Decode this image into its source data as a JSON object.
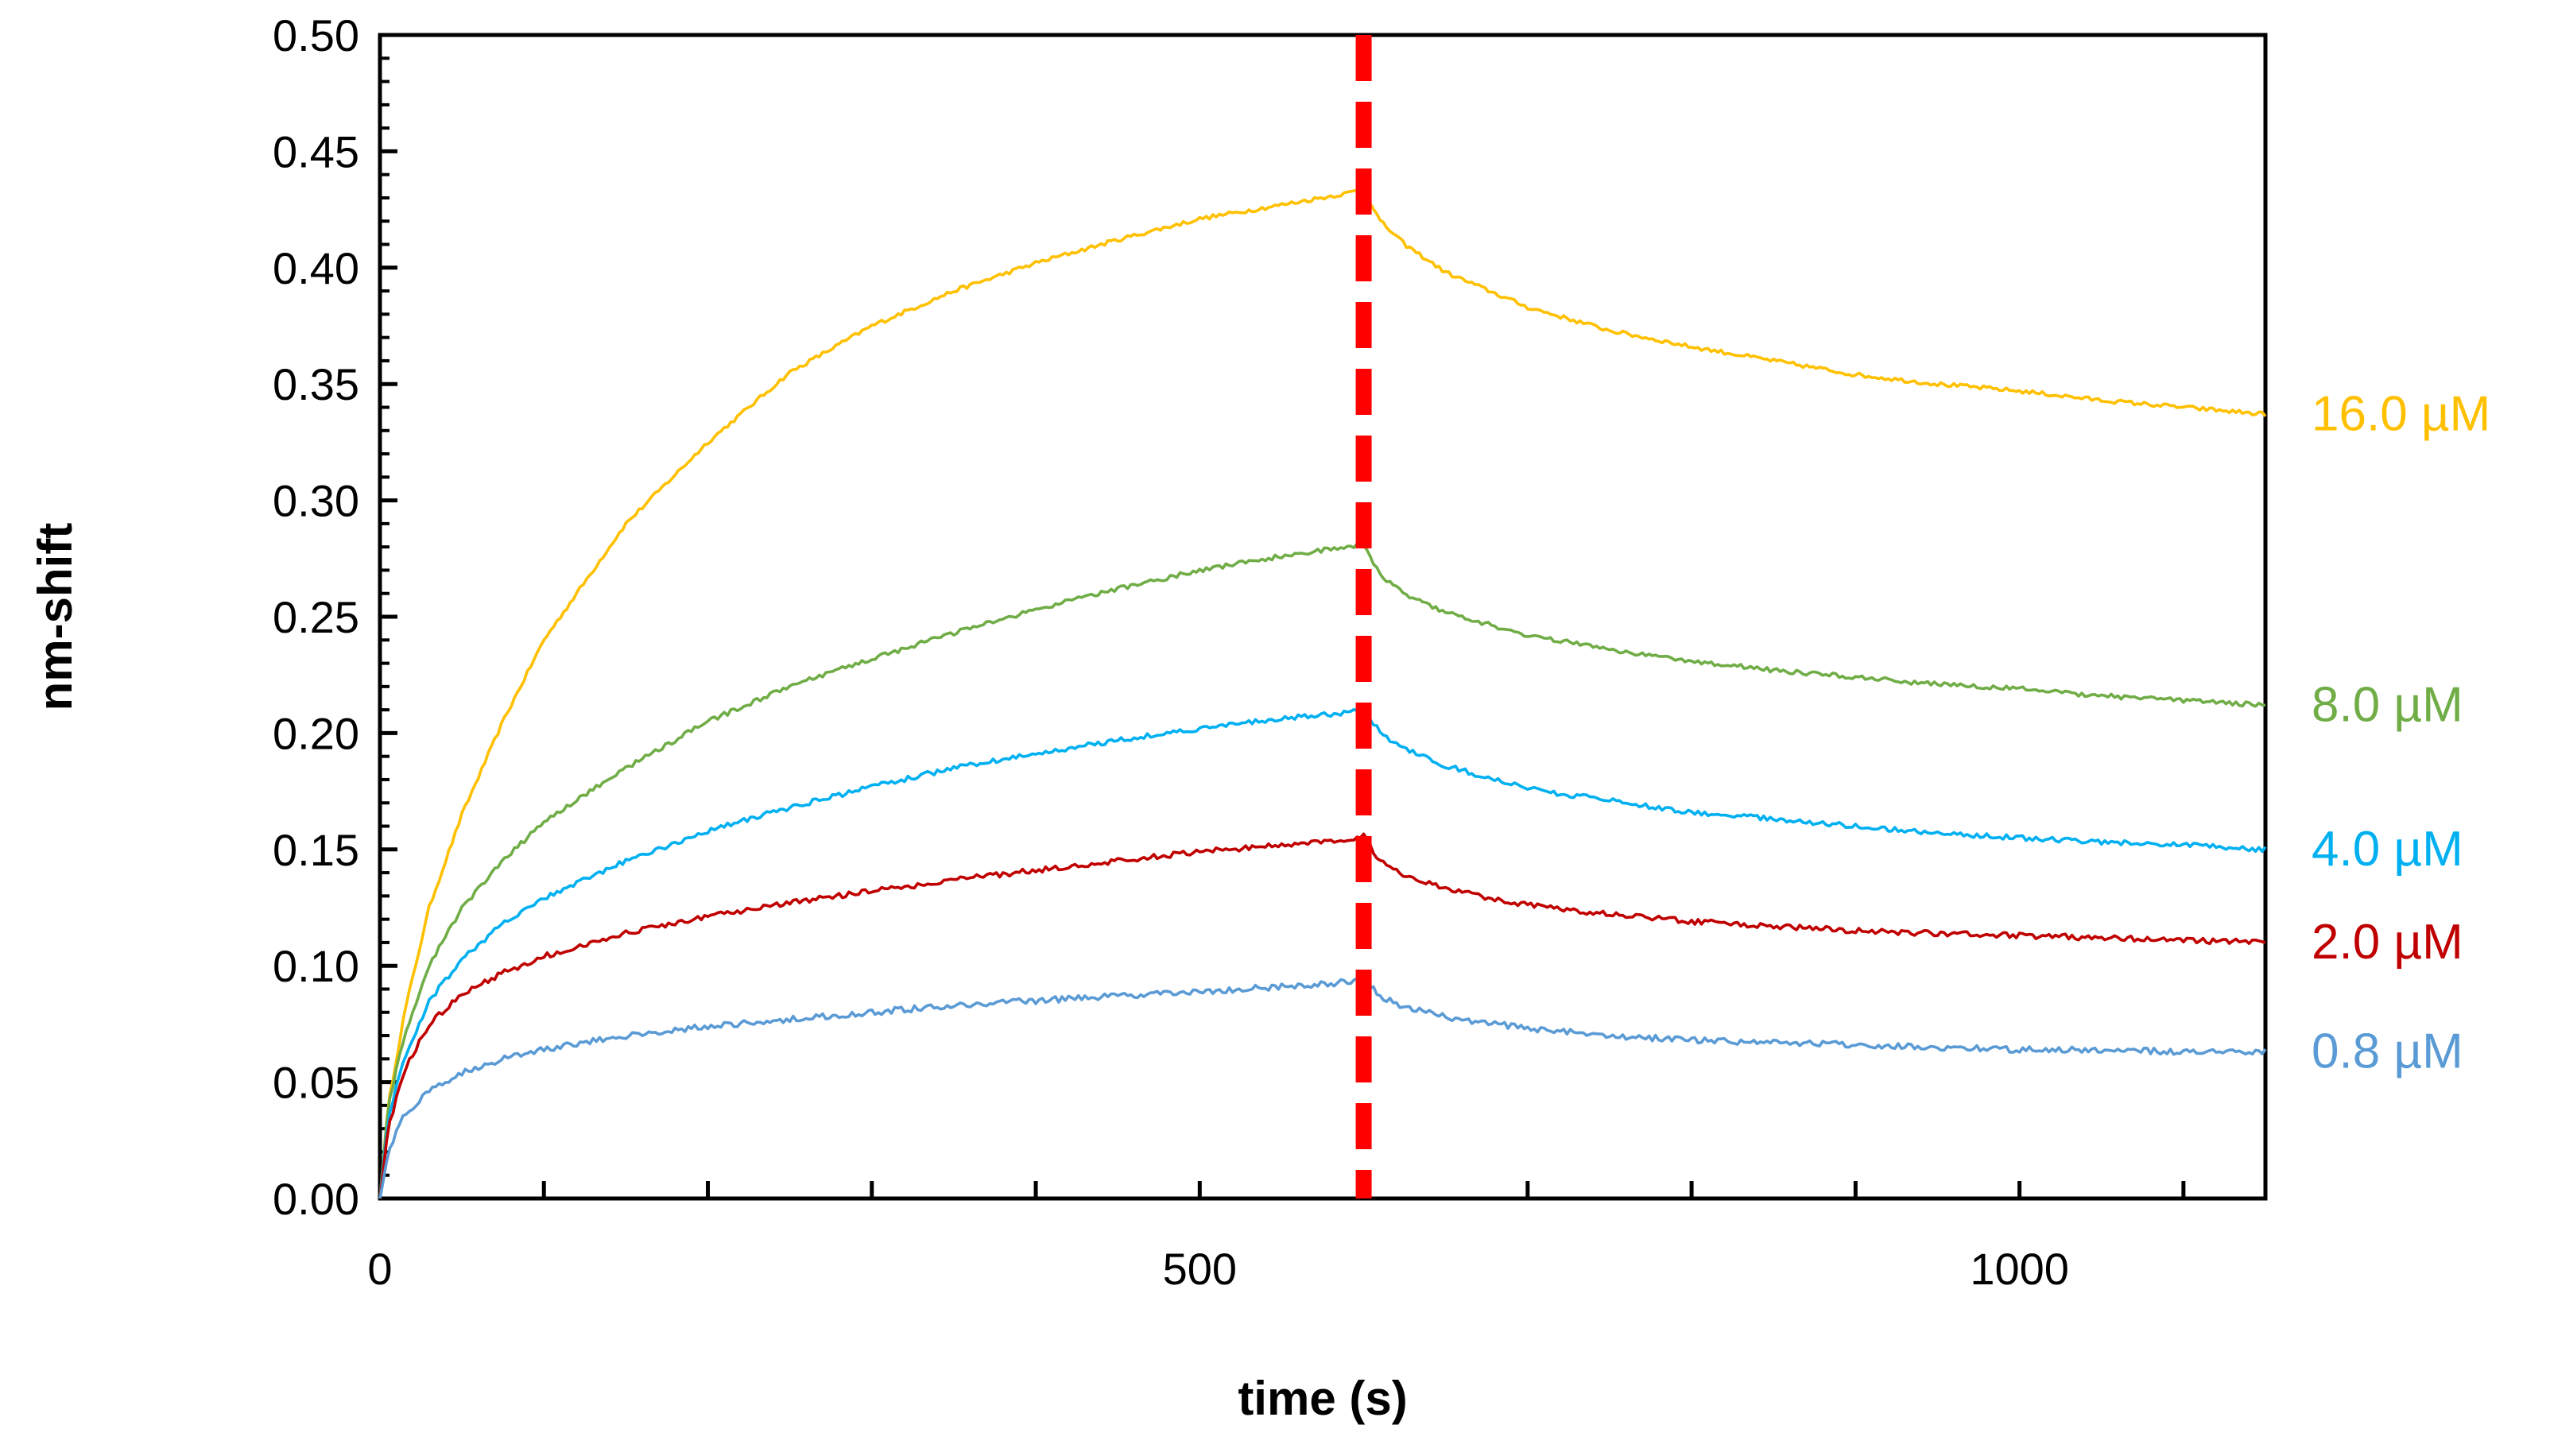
{
  "chart_data": {
    "type": "line",
    "title": "",
    "xlabel": "time (s)",
    "ylabel": "nm-shift",
    "xlim": [
      0,
      1150
    ],
    "ylim": [
      0,
      0.5
    ],
    "x_ticks": [
      0,
      500,
      1000
    ],
    "x_tick_labels": [
      "0",
      "500",
      "1000"
    ],
    "y_ticks": [
      0,
      0.05,
      0.1,
      0.15,
      0.2,
      0.25,
      0.3,
      0.35,
      0.4,
      0.45,
      0.5
    ],
    "y_tick_labels": [
      "0.00",
      "0.05",
      "0.10",
      "0.15",
      "0.20",
      "0.25",
      "0.30",
      "0.35",
      "0.40",
      "0.45",
      "0.50"
    ],
    "grid": false,
    "legend": "labels at right end of each series",
    "annotations": [
      {
        "type": "vertical-dashed-line",
        "x": 600,
        "color": "#ff0000"
      }
    ],
    "series": [
      {
        "name": "16.0 µM",
        "color": "#ffc000",
        "x": [
          0,
          5,
          15,
          30,
          50,
          75,
          100,
          150,
          200,
          250,
          300,
          350,
          400,
          450,
          500,
          550,
          590,
          600,
          610,
          625,
          650,
          700,
          750,
          800,
          850,
          900,
          950,
          1000,
          1050,
          1100,
          1150
        ],
        "y": [
          0.0,
          0.04,
          0.08,
          0.125,
          0.165,
          0.205,
          0.24,
          0.29,
          0.325,
          0.355,
          0.375,
          0.39,
          0.402,
          0.412,
          0.421,
          0.427,
          0.432,
          0.434,
          0.42,
          0.41,
          0.398,
          0.383,
          0.373,
          0.366,
          0.36,
          0.354,
          0.35,
          0.347,
          0.343,
          0.34,
          0.337
        ]
      },
      {
        "name": "8.0 µM",
        "color": "#70ad47",
        "x": [
          0,
          5,
          15,
          30,
          50,
          75,
          100,
          150,
          200,
          250,
          300,
          350,
          400,
          450,
          500,
          550,
          590,
          600,
          610,
          625,
          650,
          700,
          750,
          800,
          850,
          900,
          950,
          1000,
          1050,
          1100,
          1150
        ],
        "y": [
          0.0,
          0.04,
          0.07,
          0.1,
          0.125,
          0.145,
          0.162,
          0.185,
          0.205,
          0.22,
          0.232,
          0.243,
          0.253,
          0.262,
          0.27,
          0.276,
          0.28,
          0.281,
          0.268,
          0.26,
          0.252,
          0.242,
          0.236,
          0.231,
          0.227,
          0.224,
          0.221,
          0.219,
          0.216,
          0.214,
          0.212
        ]
      },
      {
        "name": "4.0 µM",
        "color": "#00b0f0",
        "x": [
          0,
          5,
          15,
          30,
          50,
          75,
          100,
          150,
          200,
          250,
          300,
          350,
          400,
          450,
          500,
          550,
          590,
          600,
          610,
          625,
          650,
          700,
          750,
          800,
          850,
          900,
          950,
          1000,
          1050,
          1100,
          1150
        ],
        "y": [
          0.0,
          0.035,
          0.06,
          0.085,
          0.103,
          0.118,
          0.129,
          0.145,
          0.158,
          0.168,
          0.177,
          0.185,
          0.191,
          0.197,
          0.202,
          0.206,
          0.209,
          0.211,
          0.2,
          0.193,
          0.186,
          0.176,
          0.171,
          0.166,
          0.163,
          0.16,
          0.157,
          0.155,
          0.153,
          0.152,
          0.15
        ]
      },
      {
        "name": "2.0 µM",
        "color": "#c00000",
        "x": [
          0,
          5,
          15,
          30,
          50,
          75,
          100,
          150,
          200,
          250,
          300,
          350,
          400,
          450,
          500,
          550,
          590,
          600,
          610,
          625,
          650,
          700,
          750,
          800,
          850,
          900,
          950,
          1000,
          1050,
          1100,
          1150
        ],
        "y": [
          0.0,
          0.03,
          0.055,
          0.075,
          0.088,
          0.097,
          0.104,
          0.114,
          0.121,
          0.127,
          0.132,
          0.137,
          0.141,
          0.145,
          0.149,
          0.152,
          0.154,
          0.156,
          0.145,
          0.139,
          0.133,
          0.126,
          0.122,
          0.119,
          0.117,
          0.115,
          0.114,
          0.113,
          0.112,
          0.111,
          0.11
        ]
      },
      {
        "name": "0.8 µM",
        "color": "#5b9bd5",
        "x": [
          0,
          5,
          15,
          30,
          50,
          75,
          100,
          150,
          200,
          250,
          300,
          350,
          400,
          450,
          500,
          550,
          590,
          600,
          610,
          625,
          650,
          700,
          750,
          800,
          850,
          900,
          950,
          1000,
          1050,
          1100,
          1150
        ],
        "y": [
          0.0,
          0.02,
          0.036,
          0.046,
          0.054,
          0.06,
          0.064,
          0.07,
          0.074,
          0.077,
          0.08,
          0.083,
          0.085,
          0.087,
          0.089,
          0.091,
          0.093,
          0.094,
          0.087,
          0.082,
          0.078,
          0.073,
          0.07,
          0.068,
          0.067,
          0.066,
          0.065,
          0.064,
          0.064,
          0.063,
          0.063
        ]
      }
    ]
  }
}
